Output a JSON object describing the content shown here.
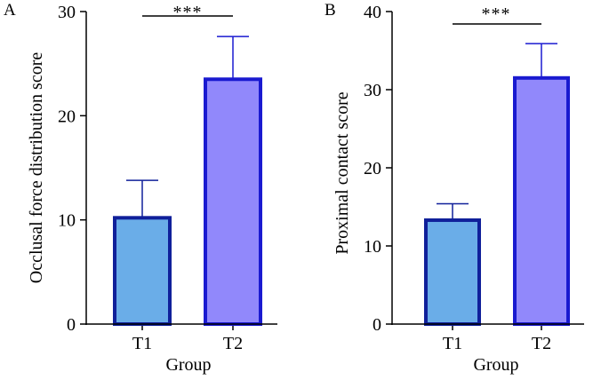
{
  "chart_data": [
    {
      "type": "bar",
      "panel_label": "A",
      "categories": [
        "T1",
        "T2"
      ],
      "values": [
        10.2,
        23.5
      ],
      "errors": [
        3.6,
        4.1
      ],
      "xlabel": "Group",
      "ylabel": "Occlusal force distribution score",
      "ylim": [
        0,
        30
      ],
      "yticks": [
        0,
        10,
        20,
        30
      ],
      "bar_fill": [
        "#6aade8",
        "#9188fb"
      ],
      "bar_edge": [
        "#10209a",
        "#1a1ad0"
      ],
      "significance": "***",
      "grid": false
    },
    {
      "type": "bar",
      "panel_label": "B",
      "categories": [
        "T1",
        "T2"
      ],
      "values": [
        13.3,
        31.5
      ],
      "errors": [
        2.1,
        4.4
      ],
      "xlabel": "Group",
      "ylabel": "Proximal contact score",
      "ylim": [
        0,
        40
      ],
      "yticks": [
        0,
        10,
        20,
        30,
        40
      ],
      "bar_fill": [
        "#6aade8",
        "#9188fb"
      ],
      "bar_edge": [
        "#10209a",
        "#1a1ad0"
      ],
      "significance": "***",
      "grid": false
    }
  ]
}
